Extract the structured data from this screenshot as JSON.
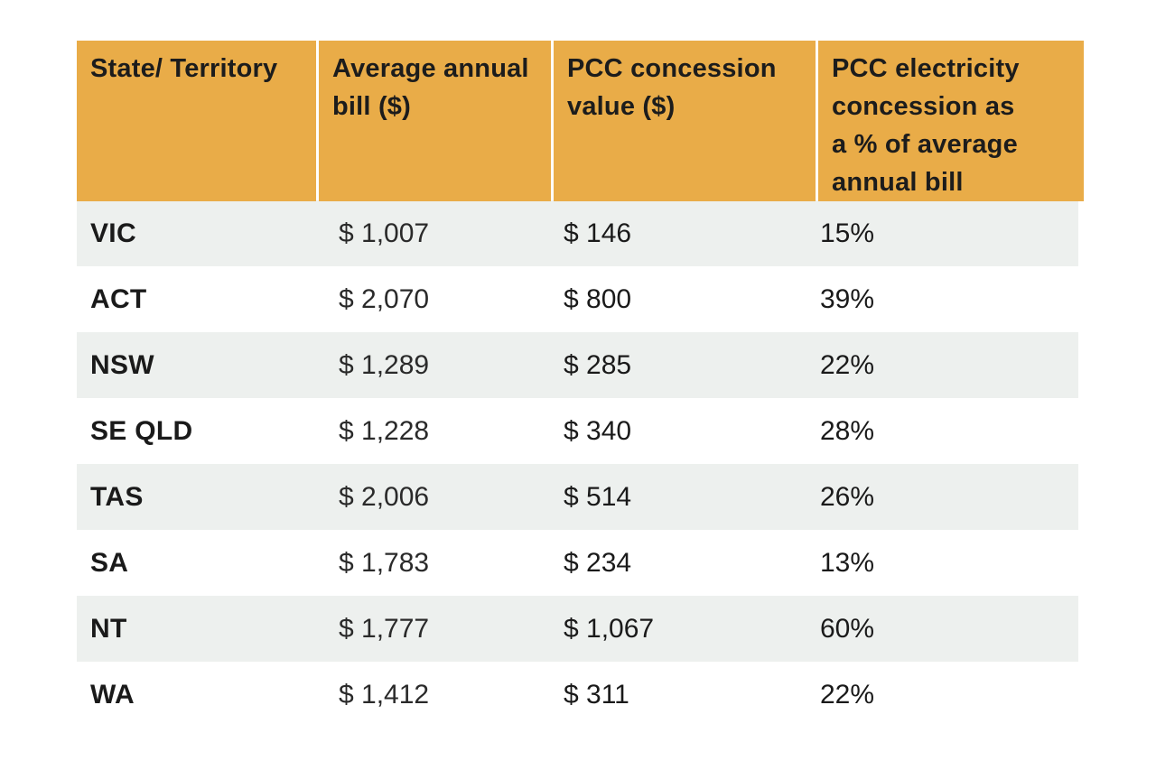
{
  "table": {
    "headers": [
      "State/ Territory",
      "Average annual bill ($)",
      "PCC concession value ($)",
      "PCC electricity concession as a % of average annual bill"
    ],
    "header_lines": [
      [
        "State/ Territory"
      ],
      [
        "Average annual",
        "bill ($)"
      ],
      [
        "PCC concession",
        "value ($)"
      ],
      [
        "PCC electricity",
        "concession as",
        "a % of average",
        "annual bill"
      ]
    ],
    "rows": [
      {
        "state": "VIC",
        "bill": "$ 1,007",
        "concession": "$ 146",
        "percent": "15%"
      },
      {
        "state": "ACT",
        "bill": "$ 2,070",
        "concession": "$ 800",
        "percent": "39%"
      },
      {
        "state": "NSW",
        "bill": "$ 1,289",
        "concession": "$ 285",
        "percent": "22%"
      },
      {
        "state": "SE QLD",
        "bill": "$ 1,228",
        "concession": "$ 340",
        "percent": "28%"
      },
      {
        "state": "TAS",
        "bill": "$ 2,006",
        "concession": "$ 514",
        "percent": "26%"
      },
      {
        "state": "SA",
        "bill": "$ 1,783",
        "concession": "$ 234",
        "percent": "13%"
      },
      {
        "state": "NT",
        "bill": "$ 1,777",
        "concession": "$ 1,067",
        "percent": "60%"
      },
      {
        "state": "WA",
        "bill": "$ 1,412",
        "concession": "$ 311",
        "percent": "22%"
      }
    ]
  },
  "colors": {
    "header_background": "#e9ac48",
    "shaded_row_background": "#edf0ee",
    "text": "#1a1a1a"
  }
}
